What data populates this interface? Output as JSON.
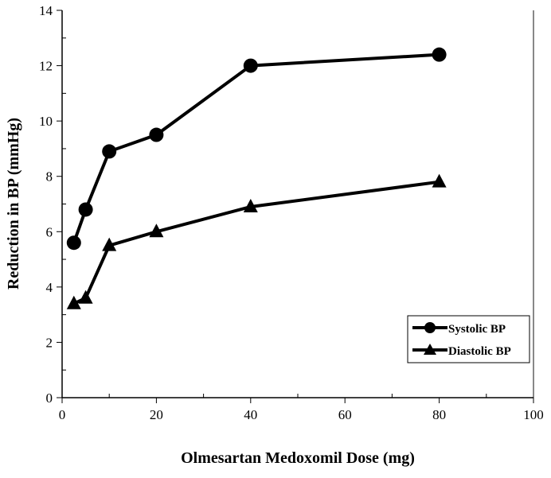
{
  "chart_data": {
    "type": "line",
    "title": "",
    "xlabel": "Olmesartan Medoxomil Dose (mg)",
    "ylabel": "Reduction in BP (mmHg)",
    "xlim": [
      0,
      100
    ],
    "ylim": [
      0,
      14
    ],
    "xticks": [
      0,
      20,
      40,
      60,
      80,
      100
    ],
    "yticks": [
      0,
      2,
      4,
      6,
      8,
      10,
      12,
      14
    ],
    "grid": false,
    "legend_position": "bottom-right",
    "series": [
      {
        "name": "Systolic BP",
        "marker": "circle",
        "x": [
          2.5,
          5,
          10,
          20,
          40,
          80
        ],
        "y": [
          5.6,
          6.8,
          8.9,
          9.5,
          12.0,
          12.4
        ]
      },
      {
        "name": "Diastolic BP",
        "marker": "triangle",
        "x": [
          2.5,
          5,
          10,
          20,
          40,
          80
        ],
        "y": [
          3.4,
          3.6,
          5.5,
          6.0,
          6.9,
          7.8
        ]
      }
    ],
    "color": "#000000"
  }
}
